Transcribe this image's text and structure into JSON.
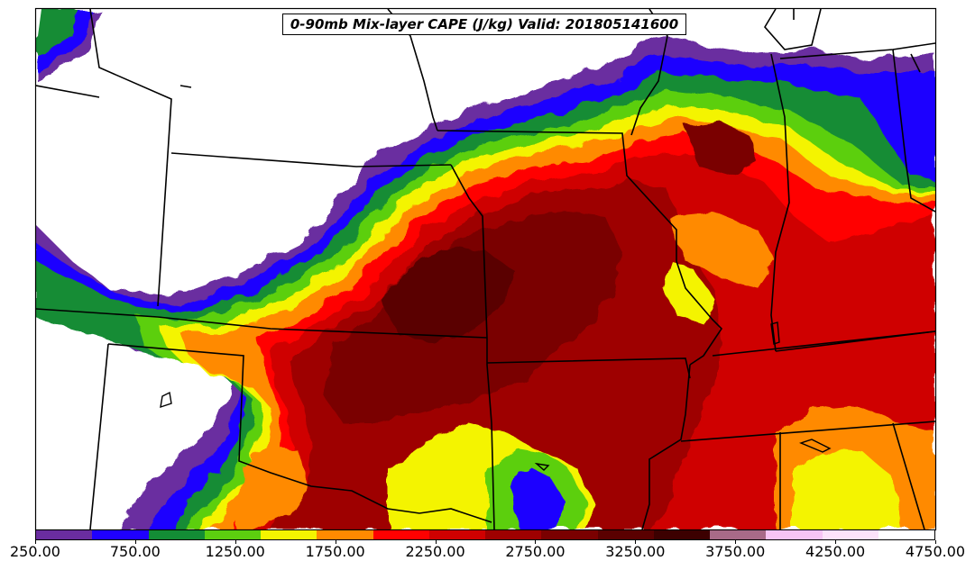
{
  "title": "0-90mb Mix-layer CAPE (J/kg) Valid: 201805141600",
  "colorbar": {
    "colors": [
      "#6a2da0",
      "#1f00ff",
      "#138c35",
      "#5ccf0f",
      "#f4f400",
      "#ff8a00",
      "#ff0000",
      "#cf0000",
      "#9e0000",
      "#7a0000",
      "#5a0000",
      "#3c0000",
      "#a86a88",
      "#f7c4f4",
      "#fde2fa",
      "#ffffff"
    ],
    "tick_labels": [
      "250.00",
      "750.00",
      "1250.00",
      "1750.00",
      "2250.00",
      "2750.00",
      "3250.00",
      "3750.00",
      "4250.00",
      "4750.00"
    ]
  }
}
